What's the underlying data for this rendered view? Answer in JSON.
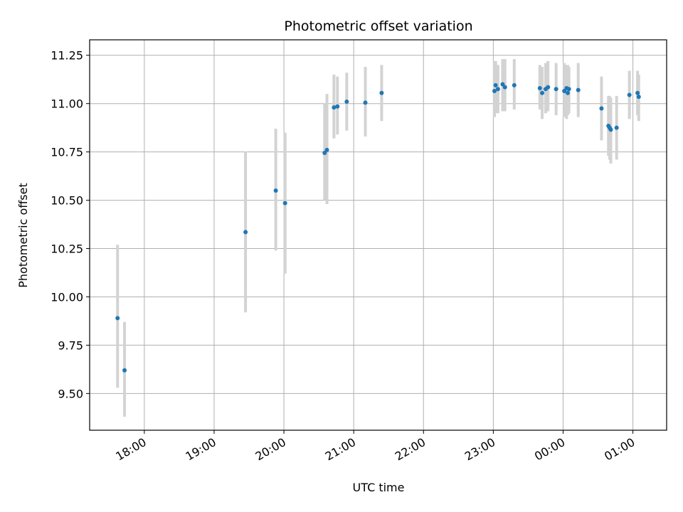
{
  "chart_data": {
    "type": "scatter",
    "title": "Photometric offset variation",
    "xlabel": "UTC time",
    "ylabel": "Photometric offset",
    "grid": true,
    "legend": "none",
    "xlim": [
      "17:13",
      "01:29"
    ],
    "ylim": [
      9.31,
      11.33
    ],
    "x_ticks": [
      "18:00",
      "19:00",
      "20:00",
      "21:00",
      "22:00",
      "23:00",
      "00:00",
      "01:00"
    ],
    "y_ticks": [
      "9.50",
      "9.75",
      "10.00",
      "10.25",
      "10.50",
      "10.75",
      "11.00",
      "11.25"
    ],
    "colors": {
      "points": "#1f77b4",
      "errorbars": "#d3d3d3",
      "grid": "#b0b0b0"
    },
    "series": [
      {
        "points": [
          {
            "x": "17:37",
            "y": 9.89,
            "ymin": 9.53,
            "ymax": 10.27
          },
          {
            "x": "17:43",
            "y": 9.62,
            "ymin": 9.38,
            "ymax": 9.87
          },
          {
            "x": "19:27",
            "y": 10.335,
            "ymin": 9.92,
            "ymax": 10.75
          },
          {
            "x": "19:53",
            "y": 10.55,
            "ymin": 10.24,
            "ymax": 10.87
          },
          {
            "x": "20:01",
            "y": 10.485,
            "ymin": 10.12,
            "ymax": 10.85
          },
          {
            "x": "20:35",
            "y": 10.745,
            "ymin": 10.5,
            "ymax": 11.0
          },
          {
            "x": "20:37",
            "y": 10.76,
            "ymin": 10.48,
            "ymax": 11.05
          },
          {
            "x": "20:43",
            "y": 10.98,
            "ymin": 10.82,
            "ymax": 11.15
          },
          {
            "x": "20:46",
            "y": 10.985,
            "ymin": 10.84,
            "ymax": 11.14
          },
          {
            "x": "20:54",
            "y": 11.01,
            "ymin": 10.86,
            "ymax": 11.16
          },
          {
            "x": "21:10",
            "y": 11.005,
            "ymin": 10.83,
            "ymax": 11.19
          },
          {
            "x": "21:24",
            "y": 11.055,
            "ymin": 10.91,
            "ymax": 11.2
          },
          {
            "x": "23:01",
            "y": 11.065,
            "ymin": 10.93,
            "ymax": 11.22
          },
          {
            "x": "23:02",
            "y": 11.095,
            "ymin": 10.95,
            "ymax": 11.22
          },
          {
            "x": "23:04",
            "y": 11.075,
            "ymin": 10.95,
            "ymax": 11.2
          },
          {
            "x": "23:08",
            "y": 11.1,
            "ymin": 10.96,
            "ymax": 11.23
          },
          {
            "x": "23:10",
            "y": 11.085,
            "ymin": 10.96,
            "ymax": 11.23
          },
          {
            "x": "23:18",
            "y": 11.095,
            "ymin": 10.97,
            "ymax": 11.23
          },
          {
            "x": "23:40",
            "y": 11.08,
            "ymin": 10.97,
            "ymax": 11.2
          },
          {
            "x": "23:42",
            "y": 11.055,
            "ymin": 10.92,
            "ymax": 11.19
          },
          {
            "x": "23:45",
            "y": 11.075,
            "ymin": 10.95,
            "ymax": 11.21
          },
          {
            "x": "23:47",
            "y": 11.085,
            "ymin": 10.96,
            "ymax": 11.22
          },
          {
            "x": "23:54",
            "y": 11.075,
            "ymin": 10.94,
            "ymax": 11.21
          },
          {
            "x": "00:01",
            "y": 11.065,
            "ymin": 10.93,
            "ymax": 11.21
          },
          {
            "x": "00:03",
            "y": 11.08,
            "ymin": 10.92,
            "ymax": 11.2
          },
          {
            "x": "00:04",
            "y": 11.055,
            "ymin": 10.94,
            "ymax": 11.2
          },
          {
            "x": "00:05",
            "y": 11.075,
            "ymin": 10.95,
            "ymax": 11.19
          },
          {
            "x": "00:13",
            "y": 11.07,
            "ymin": 10.93,
            "ymax": 11.21
          },
          {
            "x": "00:33",
            "y": 10.975,
            "ymin": 10.81,
            "ymax": 11.14
          },
          {
            "x": "00:39",
            "y": 10.885,
            "ymin": 10.73,
            "ymax": 11.04
          },
          {
            "x": "00:40",
            "y": 10.875,
            "ymin": 10.71,
            "ymax": 11.04
          },
          {
            "x": "00:41",
            "y": 10.865,
            "ymin": 10.69,
            "ymax": 11.03
          },
          {
            "x": "00:46",
            "y": 10.875,
            "ymin": 10.71,
            "ymax": 11.04
          },
          {
            "x": "00:57",
            "y": 11.045,
            "ymin": 10.92,
            "ymax": 11.17
          },
          {
            "x": "01:04",
            "y": 11.055,
            "ymin": 10.94,
            "ymax": 11.17
          },
          {
            "x": "01:05",
            "y": 11.035,
            "ymin": 10.91,
            "ymax": 11.15
          }
        ]
      }
    ]
  }
}
